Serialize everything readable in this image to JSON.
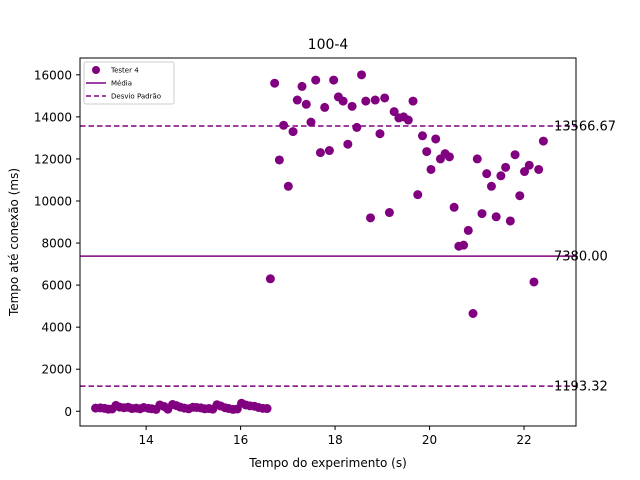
{
  "chart_data": {
    "type": "scatter",
    "title": "100-4",
    "xlabel": "Tempo do experimento (s)",
    "ylabel": "Tempo até conexão (ms)",
    "xlim": [
      12.6,
      23.1
    ],
    "ylim": [
      -700,
      16800
    ],
    "xticks": [
      14,
      16,
      18,
      20,
      22
    ],
    "yticks": [
      0,
      2000,
      4000,
      6000,
      8000,
      10000,
      12000,
      14000,
      16000
    ],
    "grid": false,
    "legend": {
      "placement": "top-left",
      "entries": [
        {
          "label": "Tester 4",
          "kind": "marker"
        },
        {
          "label": "Média",
          "kind": "solid-line"
        },
        {
          "label": "Desvio Padrão",
          "kind": "dashed-line"
        }
      ]
    },
    "colors": {
      "series": "#800080"
    },
    "series": [
      {
        "name": "Tester 4",
        "points": [
          [
            12.93,
            150
          ],
          [
            13.03,
            160
          ],
          [
            13.12,
            140
          ],
          [
            13.2,
            100
          ],
          [
            13.28,
            110
          ],
          [
            13.36,
            280
          ],
          [
            13.44,
            200
          ],
          [
            13.53,
            170
          ],
          [
            13.62,
            190
          ],
          [
            13.7,
            130
          ],
          [
            13.79,
            150
          ],
          [
            13.87,
            120
          ],
          [
            13.95,
            180
          ],
          [
            14.05,
            140
          ],
          [
            14.12,
            120
          ],
          [
            14.21,
            90
          ],
          [
            14.29,
            300
          ],
          [
            14.38,
            230
          ],
          [
            14.46,
            100
          ],
          [
            14.56,
            320
          ],
          [
            14.64,
            270
          ],
          [
            14.72,
            200
          ],
          [
            14.81,
            150
          ],
          [
            14.9,
            120
          ],
          [
            14.99,
            190
          ],
          [
            15.07,
            180
          ],
          [
            15.16,
            160
          ],
          [
            15.24,
            120
          ],
          [
            15.33,
            130
          ],
          [
            15.41,
            100
          ],
          [
            15.5,
            310
          ],
          [
            15.58,
            250
          ],
          [
            15.67,
            170
          ],
          [
            15.75,
            130
          ],
          [
            15.84,
            90
          ],
          [
            15.93,
            110
          ],
          [
            16.02,
            380
          ],
          [
            16.11,
            300
          ],
          [
            16.2,
            260
          ],
          [
            16.29,
            240
          ],
          [
            16.38,
            180
          ],
          [
            16.47,
            140
          ],
          [
            16.56,
            130
          ],
          [
            16.63,
            6300
          ],
          [
            16.72,
            15600
          ],
          [
            16.82,
            11950
          ],
          [
            16.91,
            13600
          ],
          [
            17.01,
            10700
          ],
          [
            17.11,
            13300
          ],
          [
            17.2,
            14800
          ],
          [
            17.3,
            15450
          ],
          [
            17.39,
            14600
          ],
          [
            17.49,
            13750
          ],
          [
            17.59,
            15750
          ],
          [
            17.69,
            12300
          ],
          [
            17.78,
            14450
          ],
          [
            17.88,
            12400
          ],
          [
            17.97,
            15750
          ],
          [
            18.07,
            14950
          ],
          [
            18.17,
            14750
          ],
          [
            18.27,
            12700
          ],
          [
            18.36,
            14500
          ],
          [
            18.46,
            13500
          ],
          [
            18.56,
            16000
          ],
          [
            18.65,
            14750
          ],
          [
            18.75,
            9200
          ],
          [
            18.85,
            14800
          ],
          [
            18.95,
            13200
          ],
          [
            19.05,
            14900
          ],
          [
            19.15,
            9450
          ],
          [
            19.25,
            14250
          ],
          [
            19.35,
            13950
          ],
          [
            19.45,
            14000
          ],
          [
            19.55,
            13850
          ],
          [
            19.65,
            14750
          ],
          [
            19.75,
            10300
          ],
          [
            19.85,
            13100
          ],
          [
            19.94,
            12350
          ],
          [
            20.03,
            11500
          ],
          [
            20.13,
            12950
          ],
          [
            20.23,
            12000
          ],
          [
            20.33,
            12250
          ],
          [
            20.42,
            12100
          ],
          [
            20.52,
            9700
          ],
          [
            20.62,
            7850
          ],
          [
            20.72,
            7900
          ],
          [
            20.82,
            8600
          ],
          [
            20.92,
            4650
          ],
          [
            21.01,
            12000
          ],
          [
            21.11,
            9400
          ],
          [
            21.21,
            11300
          ],
          [
            21.31,
            10700
          ],
          [
            21.41,
            9250
          ],
          [
            21.51,
            11200
          ],
          [
            21.61,
            11600
          ],
          [
            21.71,
            9050
          ],
          [
            21.81,
            12200
          ],
          [
            21.91,
            10250
          ],
          [
            22.01,
            11400
          ],
          [
            22.11,
            11700
          ],
          [
            22.21,
            6150
          ],
          [
            22.31,
            11500
          ],
          [
            22.41,
            12850
          ]
        ]
      }
    ],
    "reference_lines": [
      {
        "name": "upper",
        "y": 13566.67,
        "style": "dashed",
        "label": "13566.67"
      },
      {
        "name": "mean",
        "y": 7380.0,
        "style": "solid",
        "label": "7380.00"
      },
      {
        "name": "lower",
        "y": 1193.32,
        "style": "dashed",
        "label": "1193.32"
      }
    ]
  }
}
